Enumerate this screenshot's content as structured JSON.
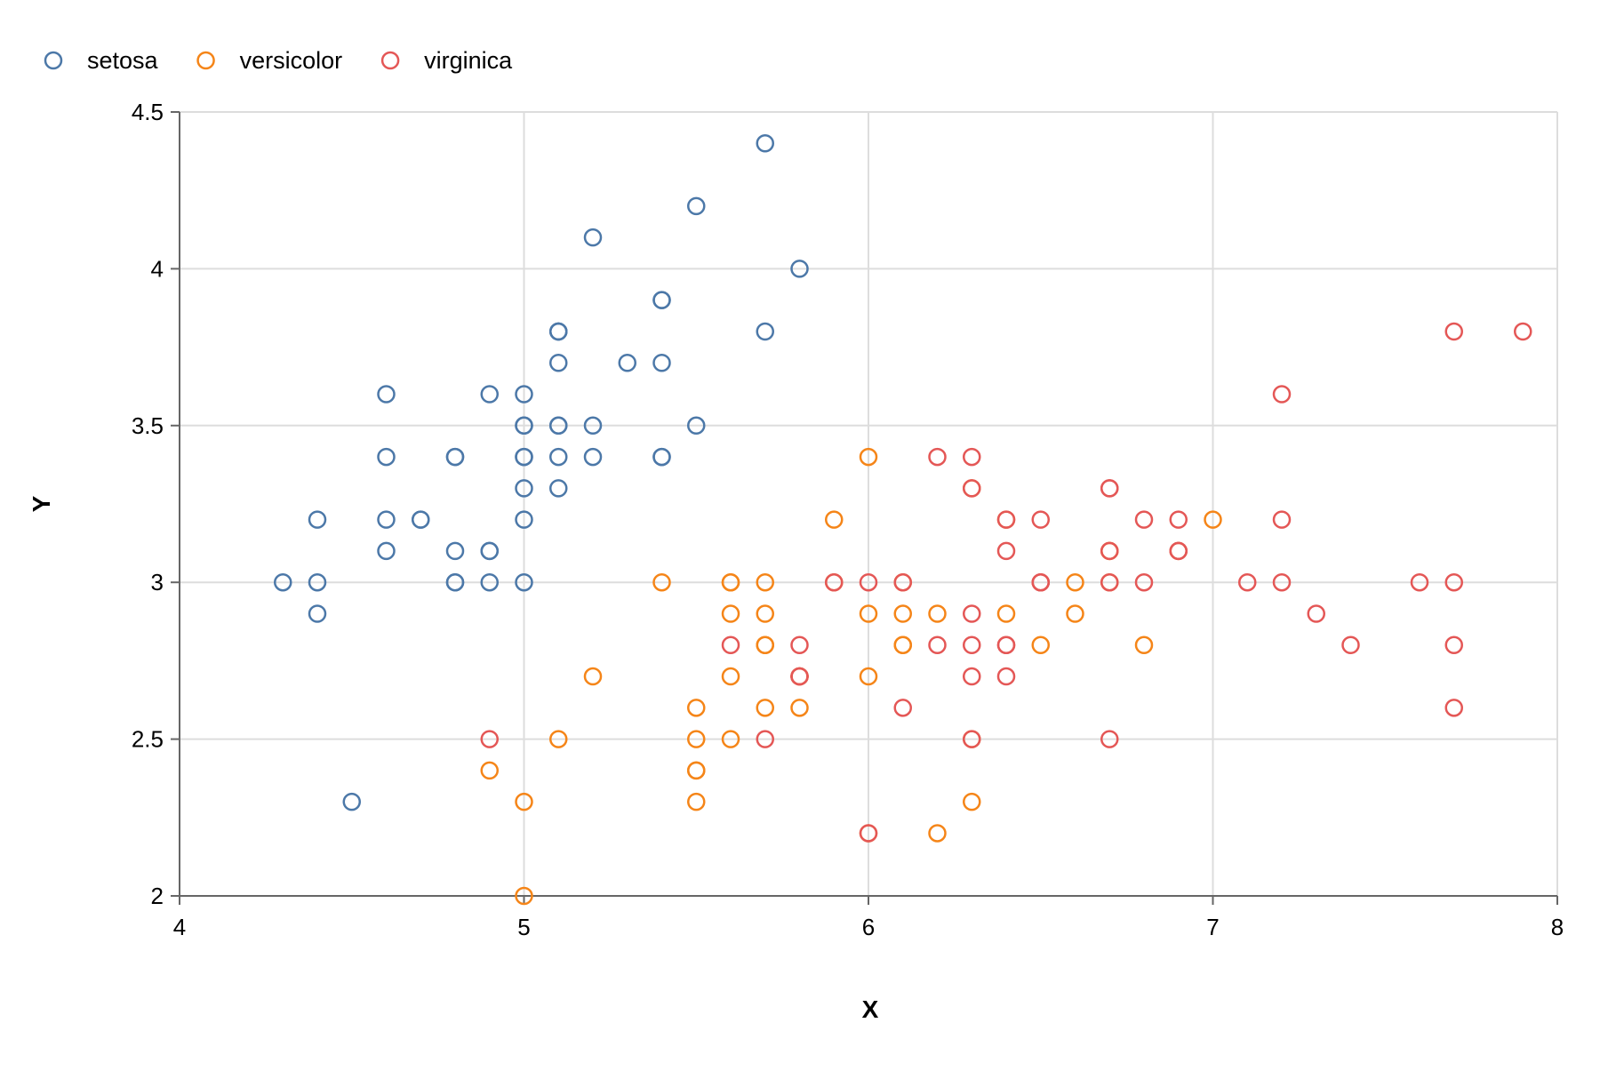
{
  "chart_data": {
    "type": "scatter",
    "title": "",
    "xlabel": "X",
    "ylabel": "Y",
    "xlim": [
      4,
      8
    ],
    "ylim": [
      2,
      4.5
    ],
    "x_ticks": [
      4,
      5,
      6,
      7,
      8
    ],
    "y_ticks": [
      2,
      2.5,
      3,
      3.5,
      4,
      4.5
    ],
    "x_tick_labels": [
      "4",
      "5",
      "6",
      "7",
      "8"
    ],
    "y_tick_labels": [
      "2",
      "2.5",
      "3",
      "3.5",
      "4",
      "4.5"
    ],
    "grid": true,
    "legend_position": "top-left",
    "marker": "hollow-circle",
    "series": [
      {
        "name": "setosa",
        "color": "#4c78a8",
        "x": [
          5.1,
          4.9,
          4.7,
          4.6,
          5.0,
          5.4,
          4.6,
          5.0,
          4.4,
          4.9,
          5.4,
          4.8,
          4.8,
          4.3,
          5.8,
          5.7,
          5.4,
          5.1,
          5.7,
          5.1,
          5.4,
          5.1,
          4.6,
          5.1,
          4.8,
          5.0,
          5.0,
          5.2,
          5.2,
          4.7,
          4.8,
          5.4,
          5.2,
          5.5,
          4.9,
          5.0,
          5.5,
          4.9,
          4.4,
          5.1,
          5.0,
          4.5,
          4.4,
          5.0,
          5.1,
          4.8,
          5.1,
          4.6,
          5.3,
          5.0
        ],
        "y": [
          3.5,
          3.0,
          3.2,
          3.1,
          3.6,
          3.9,
          3.4,
          3.4,
          2.9,
          3.1,
          3.7,
          3.4,
          3.0,
          3.0,
          4.0,
          4.4,
          3.9,
          3.5,
          3.8,
          3.8,
          3.4,
          3.7,
          3.6,
          3.3,
          3.4,
          3.0,
          3.4,
          3.5,
          3.4,
          3.2,
          3.1,
          3.4,
          4.1,
          4.2,
          3.1,
          3.2,
          3.5,
          3.6,
          3.0,
          3.4,
          3.5,
          2.3,
          3.2,
          3.5,
          3.8,
          3.0,
          3.8,
          3.2,
          3.7,
          3.3
        ]
      },
      {
        "name": "versicolor",
        "color": "#f58518",
        "x": [
          7.0,
          6.4,
          6.9,
          5.5,
          6.5,
          5.7,
          6.3,
          4.9,
          6.6,
          5.2,
          5.0,
          5.9,
          6.0,
          6.1,
          5.6,
          6.7,
          5.6,
          5.8,
          6.2,
          5.6,
          5.9,
          6.1,
          6.3,
          6.1,
          6.4,
          6.6,
          6.8,
          6.7,
          6.0,
          5.7,
          5.5,
          5.5,
          5.8,
          6.0,
          5.4,
          6.0,
          6.7,
          6.3,
          5.6,
          5.5,
          5.5,
          6.1,
          5.8,
          5.0,
          5.6,
          5.7,
          5.7,
          6.2,
          5.1,
          5.7
        ],
        "y": [
          3.2,
          3.2,
          3.1,
          2.3,
          2.8,
          2.8,
          3.3,
          2.4,
          2.9,
          2.7,
          2.0,
          3.0,
          2.2,
          2.9,
          2.9,
          3.1,
          3.0,
          2.7,
          2.2,
          2.5,
          3.2,
          2.8,
          2.5,
          2.8,
          2.9,
          3.0,
          2.8,
          3.0,
          2.9,
          2.6,
          2.4,
          2.4,
          2.7,
          2.7,
          3.0,
          3.4,
          3.1,
          2.3,
          3.0,
          2.5,
          2.6,
          3.0,
          2.6,
          2.3,
          2.7,
          3.0,
          2.9,
          2.9,
          2.5,
          2.8
        ]
      },
      {
        "name": "virginica",
        "color": "#e45756",
        "x": [
          6.3,
          5.8,
          7.1,
          6.3,
          6.5,
          7.6,
          4.9,
          7.3,
          6.7,
          7.2,
          6.5,
          6.4,
          6.8,
          5.7,
          5.8,
          6.4,
          6.5,
          7.7,
          7.7,
          6.0,
          6.9,
          5.6,
          7.7,
          6.3,
          6.7,
          7.2,
          6.2,
          6.1,
          6.4,
          7.2,
          7.4,
          7.9,
          6.4,
          6.3,
          6.1,
          7.7,
          6.3,
          6.4,
          6.0,
          6.9,
          6.7,
          6.9,
          5.8,
          6.8,
          6.7,
          6.7,
          6.3,
          6.5,
          6.2,
          5.9
        ],
        "y": [
          3.3,
          2.7,
          3.0,
          2.9,
          3.0,
          3.0,
          2.5,
          2.9,
          2.5,
          3.6,
          3.2,
          2.7,
          3.0,
          2.5,
          2.8,
          3.2,
          3.0,
          3.8,
          2.6,
          2.2,
          3.2,
          2.8,
          2.8,
          2.7,
          3.3,
          3.2,
          2.8,
          3.0,
          2.8,
          3.0,
          2.8,
          3.8,
          2.8,
          2.8,
          2.6,
          3.0,
          3.4,
          3.1,
          3.0,
          3.1,
          3.1,
          3.1,
          2.7,
          3.2,
          3.3,
          3.0,
          2.5,
          3.0,
          3.4,
          3.0
        ]
      }
    ]
  }
}
